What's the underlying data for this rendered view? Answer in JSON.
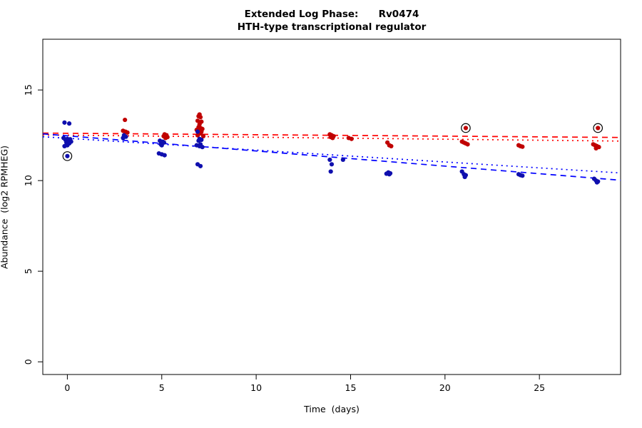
{
  "title": {
    "line1": "Extended Log Phase:      Rv0474",
    "line2": "HTH-type transcriptional regulator"
  },
  "chart_data": {
    "type": "scatter",
    "title": "Extended Log Phase:      Rv0474",
    "subtitle": "HTH-type transcriptional regulator",
    "xlabel": "Time  (days)",
    "ylabel": "Abundance  (log2 RPMHEG)",
    "xlim": [
      -1.3,
      29.3
    ],
    "ylim": [
      -0.7,
      17.8
    ],
    "xticks": [
      0,
      5,
      10,
      15,
      20,
      25
    ],
    "yticks": [
      0,
      5,
      10,
      15
    ],
    "grid": false,
    "legend": "none",
    "point_colors": {
      "red": "#c00000",
      "blue": "#0f0fae"
    },
    "line_colors": {
      "red": "#ff0000",
      "blue": "#0000ff"
    },
    "series": [
      {
        "name": "red-condition",
        "color": "#c00000",
        "points": [
          [
            3.05,
            13.35
          ],
          [
            2.95,
            12.75
          ],
          [
            3.08,
            12.7
          ],
          [
            3.18,
            12.65
          ],
          [
            5.15,
            12.55
          ],
          [
            5.25,
            12.5
          ],
          [
            5.1,
            12.45
          ],
          [
            5.3,
            12.4
          ],
          [
            5.2,
            12.35
          ],
          [
            7.0,
            13.65
          ],
          [
            6.95,
            13.55
          ],
          [
            7.05,
            13.5
          ],
          [
            6.9,
            13.3
          ],
          [
            7.1,
            13.25
          ],
          [
            7.0,
            13.1
          ],
          [
            6.95,
            12.95
          ],
          [
            7.05,
            12.9
          ],
          [
            7.15,
            12.85
          ],
          [
            6.85,
            12.8
          ],
          [
            7.0,
            12.75
          ],
          [
            7.1,
            12.7
          ],
          [
            6.95,
            12.65
          ],
          [
            7.05,
            12.6
          ],
          [
            6.9,
            12.5
          ],
          [
            7.2,
            12.45
          ],
          [
            13.9,
            12.55
          ],
          [
            14.0,
            12.5
          ],
          [
            14.1,
            12.45
          ],
          [
            13.95,
            12.4
          ],
          [
            14.05,
            12.35
          ],
          [
            14.9,
            12.35
          ],
          [
            15.05,
            12.3
          ],
          [
            16.95,
            12.1
          ],
          [
            17.05,
            11.95
          ],
          [
            17.15,
            11.9
          ],
          [
            21.1,
            12.9
          ],
          [
            20.9,
            12.15
          ],
          [
            21.0,
            12.1
          ],
          [
            21.1,
            12.05
          ],
          [
            21.2,
            12.0
          ],
          [
            23.9,
            11.95
          ],
          [
            24.0,
            11.9
          ],
          [
            24.1,
            11.87
          ],
          [
            28.1,
            12.9
          ],
          [
            27.85,
            12.0
          ],
          [
            27.95,
            11.95
          ],
          [
            28.05,
            11.9
          ],
          [
            28.15,
            11.85
          ],
          [
            28.0,
            11.78
          ]
        ]
      },
      {
        "name": "blue-condition",
        "color": "#0f0fae",
        "points": [
          [
            -0.15,
            13.2
          ],
          [
            0.1,
            13.15
          ],
          [
            -0.2,
            12.35
          ],
          [
            0.0,
            12.3
          ],
          [
            0.15,
            12.28
          ],
          [
            -0.1,
            12.25
          ],
          [
            0.05,
            12.2
          ],
          [
            0.2,
            12.15
          ],
          [
            -0.05,
            12.1
          ],
          [
            0.1,
            12.05
          ],
          [
            0.0,
            11.95
          ],
          [
            -0.15,
            11.9
          ],
          [
            0.0,
            11.35
          ],
          [
            3.0,
            12.5
          ],
          [
            3.1,
            12.42
          ],
          [
            2.95,
            12.35
          ],
          [
            4.9,
            12.2
          ],
          [
            5.05,
            12.15
          ],
          [
            5.12,
            12.1
          ],
          [
            4.95,
            12.0
          ],
          [
            5.0,
            11.95
          ],
          [
            4.85,
            11.5
          ],
          [
            5.0,
            11.45
          ],
          [
            5.15,
            11.4
          ],
          [
            6.9,
            12.7
          ],
          [
            7.0,
            12.3
          ],
          [
            7.1,
            12.25
          ],
          [
            6.95,
            12.2
          ],
          [
            7.05,
            12.0
          ],
          [
            6.85,
            11.95
          ],
          [
            7.0,
            11.9
          ],
          [
            7.15,
            11.85
          ],
          [
            6.9,
            10.9
          ],
          [
            7.05,
            10.8
          ],
          [
            13.9,
            11.15
          ],
          [
            14.0,
            10.9
          ],
          [
            13.95,
            10.5
          ],
          [
            14.6,
            11.15
          ],
          [
            17.0,
            10.45
          ],
          [
            17.1,
            10.4
          ],
          [
            16.9,
            10.38
          ],
          [
            17.05,
            10.35
          ],
          [
            20.9,
            10.5
          ],
          [
            21.0,
            10.35
          ],
          [
            21.1,
            10.3
          ],
          [
            21.05,
            10.2
          ],
          [
            23.9,
            10.35
          ],
          [
            24.0,
            10.3
          ],
          [
            24.1,
            10.27
          ],
          [
            27.9,
            10.1
          ],
          [
            28.0,
            10.0
          ],
          [
            28.1,
            9.95
          ],
          [
            28.05,
            9.9
          ]
        ]
      }
    ],
    "outlined_points": [
      {
        "x": 0.0,
        "y": 11.35,
        "series": "blue-condition"
      },
      {
        "x": 21.1,
        "y": 12.9,
        "series": "red-condition"
      },
      {
        "x": 28.1,
        "y": 12.9,
        "series": "red-condition"
      }
    ],
    "trend_lines": [
      {
        "name": "red-trend-dashed",
        "color": "#ff0000",
        "style": "dashed",
        "x": [
          -1.3,
          29.3
        ],
        "y": [
          12.62,
          12.38
        ]
      },
      {
        "name": "red-trend-dotted",
        "color": "#ff0000",
        "style": "dotted",
        "x": [
          -1.3,
          29.3
        ],
        "y": [
          12.52,
          12.18
        ]
      },
      {
        "name": "blue-trend-dashed",
        "color": "#0000ff",
        "style": "dashed",
        "x": [
          -1.3,
          29.3
        ],
        "y": [
          12.58,
          10.02
        ]
      },
      {
        "name": "blue-trend-dotted",
        "color": "#0000ff",
        "style": "dotted",
        "x": [
          -1.3,
          29.3
        ],
        "y": [
          12.42,
          10.42
        ]
      }
    ]
  }
}
